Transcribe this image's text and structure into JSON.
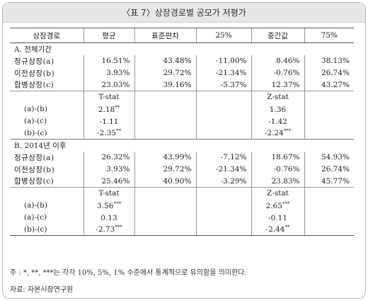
{
  "title": "〈표 7〉상장경로별 공모가 저평가",
  "headers": [
    "상장경로",
    "평균",
    "표준편차",
    "25%",
    "중간값",
    "75%"
  ],
  "sectionA": {
    "label": "A. 전체기간",
    "rows": [
      {
        "label": "정규상장(a)",
        "vals": [
          "16.51%",
          "43.48%",
          "-11.00%",
          "8.46%",
          "38.13%"
        ]
      },
      {
        "label": "이전상장(b)",
        "vals": [
          "3.93%",
          "29.72%",
          "-21.34%",
          "-0.76%",
          "26.74%"
        ]
      },
      {
        "label": "합병상장(c)",
        "vals": [
          "23.03%",
          "39.16%",
          "-5.37%",
          "12.37%",
          "43.27%"
        ]
      }
    ],
    "t_label": "T-stat",
    "z_label": "Z-stat",
    "tests": [
      {
        "label": "(a)-(b)",
        "t": "2.18",
        "t_star": "**",
        "z": "1.36",
        "z_star": ""
      },
      {
        "label": "(a)-(c)",
        "t": "-1.11",
        "t_star": "",
        "z": "-1.42",
        "z_star": ""
      },
      {
        "label": "(b)-(c)",
        "t": "-2.35",
        "t_star": "**",
        "z": "-2.24",
        "z_star": "***"
      }
    ]
  },
  "sectionB": {
    "label": "B. 2014년 이후",
    "rows": [
      {
        "label": "정규상장(a)",
        "vals": [
          "26.32%",
          "43.99%",
          "-7.12%",
          "18.67%",
          "54.93%"
        ]
      },
      {
        "label": "이전상장(b)",
        "vals": [
          "3.93%",
          "29.72%",
          "-21.34%",
          "-0.76%",
          "26.74%"
        ]
      },
      {
        "label": "합병상장(c)",
        "vals": [
          "25.46%",
          "40.90%",
          "-3.29%",
          "23.83%",
          "45.77%"
        ]
      }
    ],
    "t_label": "T-stat",
    "z_label": "Z-stat",
    "tests": [
      {
        "label": "(a)-(b)",
        "t": "3.56",
        "t_star": "***",
        "z": "2.65",
        "z_star": "***"
      },
      {
        "label": "(a)-(c)",
        "t": "0.13",
        "t_star": "",
        "z": "-0.11",
        "z_star": ""
      },
      {
        "label": "(b)-(c)",
        "t": "-2.73",
        "t_star": "***",
        "z": "-2.44",
        "z_star": "**"
      }
    ]
  },
  "note": "주 : *, **, ***는 각각 10%, 5%, 1% 수준에서 통계적으로 유의함을 의미한다.",
  "source": "자료: 자본시장연구원"
}
